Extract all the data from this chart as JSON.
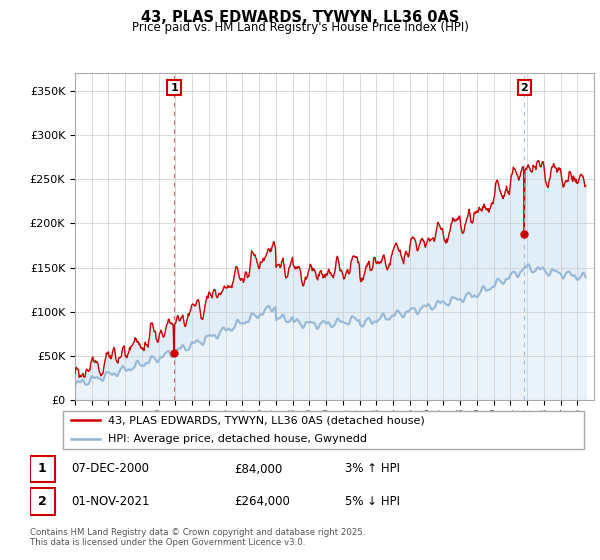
{
  "title": "43, PLAS EDWARDS, TYWYN, LL36 0AS",
  "subtitle": "Price paid vs. HM Land Registry's House Price Index (HPI)",
  "ylim": [
    0,
    370000
  ],
  "yticks": [
    0,
    50000,
    100000,
    150000,
    200000,
    250000,
    300000,
    350000
  ],
  "ytick_labels": [
    "£0",
    "£50K",
    "£100K",
    "£150K",
    "£200K",
    "£250K",
    "£300K",
    "£350K"
  ],
  "hpi_color": "#92b4d4",
  "price_color": "#cc0000",
  "fill_color": "#d6e8f5",
  "marker1_x": 2000.92,
  "marker1_y": 84000,
  "marker1_label": "1",
  "marker2_x": 2021.83,
  "marker2_y": 264000,
  "marker2_label": "2",
  "legend_price": "43, PLAS EDWARDS, TYWYN, LL36 0AS (detached house)",
  "legend_hpi": "HPI: Average price, detached house, Gwynedd",
  "note1_num": "1",
  "note1_date": "07-DEC-2000",
  "note1_price": "£84,000",
  "note1_hpi": "3% ↑ HPI",
  "note2_num": "2",
  "note2_date": "01-NOV-2021",
  "note2_price": "£264,000",
  "note2_hpi": "5% ↓ HPI",
  "footer": "Contains HM Land Registry data © Crown copyright and database right 2025.\nThis data is licensed under the Open Government Licence v3.0.",
  "xmin": 1995,
  "xmax": 2026,
  "background": "#ffffff",
  "plot_bg": "#ffffff",
  "grid_color": "#cccccc"
}
